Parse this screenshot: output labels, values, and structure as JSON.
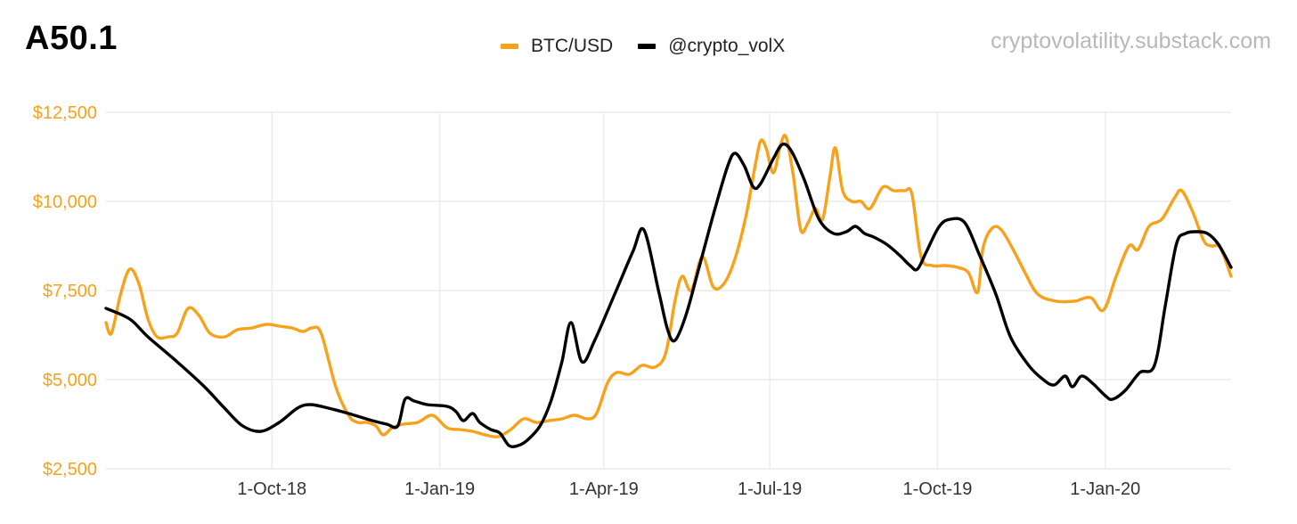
{
  "title": "A50.1",
  "watermark": "cryptovolatility.substack.com",
  "colors": {
    "btc": "#F7A21A",
    "volx": "#000000",
    "grid": "#ececec",
    "ytick": "#F7A21A",
    "xtick": "#333333"
  },
  "chart_data": {
    "type": "line",
    "xlabel": "",
    "ylabel": "",
    "ylim": [
      2500,
      12500
    ],
    "yticks": [
      2500,
      5000,
      7500,
      10000,
      12500
    ],
    "ytick_labels": [
      "$2,500",
      "$5,000",
      "$7,500",
      "$10,000",
      "$12,500"
    ],
    "xlim": [
      "2018-07-02",
      "2020-03-10"
    ],
    "xticks": [
      "2018-10-01",
      "2019-01-01",
      "2019-04-01",
      "2019-07-01",
      "2019-10-01",
      "2020-01-01"
    ],
    "xtick_labels": [
      "1-Oct-18",
      "1-Jan-19",
      "1-Apr-19",
      "1-Jul-19",
      "1-Oct-19",
      "1-Jan-20"
    ],
    "grid": true,
    "legend_position": "top-center",
    "series": [
      {
        "name": "BTC/USD",
        "color": "#F7A21A",
        "points": [
          [
            "2018-07-02",
            6600
          ],
          [
            "2018-07-05",
            6300
          ],
          [
            "2018-07-10",
            7400
          ],
          [
            "2018-07-15",
            8100
          ],
          [
            "2018-07-20",
            7700
          ],
          [
            "2018-07-25",
            6700
          ],
          [
            "2018-07-30",
            6200
          ],
          [
            "2018-08-05",
            6200
          ],
          [
            "2018-08-10",
            6300
          ],
          [
            "2018-08-16",
            7000
          ],
          [
            "2018-08-22",
            6800
          ],
          [
            "2018-08-28",
            6300
          ],
          [
            "2018-09-05",
            6200
          ],
          [
            "2018-09-12",
            6400
          ],
          [
            "2018-09-20",
            6450
          ],
          [
            "2018-09-28",
            6550
          ],
          [
            "2018-10-05",
            6500
          ],
          [
            "2018-10-12",
            6450
          ],
          [
            "2018-10-18",
            6350
          ],
          [
            "2018-10-23",
            6450
          ],
          [
            "2018-10-28",
            6300
          ],
          [
            "2018-11-05",
            4800
          ],
          [
            "2018-11-12",
            4000
          ],
          [
            "2018-11-17",
            3800
          ],
          [
            "2018-11-22",
            3800
          ],
          [
            "2018-11-27",
            3700
          ],
          [
            "2018-12-01",
            3450
          ],
          [
            "2018-12-06",
            3650
          ],
          [
            "2018-12-12",
            3750
          ],
          [
            "2018-12-20",
            3800
          ],
          [
            "2018-12-28",
            4000
          ],
          [
            "2019-01-05",
            3650
          ],
          [
            "2019-01-12",
            3600
          ],
          [
            "2019-01-19",
            3550
          ],
          [
            "2019-01-26",
            3450
          ],
          [
            "2019-02-02",
            3400
          ],
          [
            "2019-02-09",
            3600
          ],
          [
            "2019-02-16",
            3900
          ],
          [
            "2019-02-23",
            3800
          ],
          [
            "2019-03-02",
            3850
          ],
          [
            "2019-03-09",
            3900
          ],
          [
            "2019-03-16",
            4000
          ],
          [
            "2019-03-23",
            3900
          ],
          [
            "2019-03-28",
            4050
          ],
          [
            "2019-04-03",
            4900
          ],
          [
            "2019-04-08",
            5200
          ],
          [
            "2019-04-15",
            5150
          ],
          [
            "2019-04-22",
            5400
          ],
          [
            "2019-04-29",
            5350
          ],
          [
            "2019-05-05",
            5750
          ],
          [
            "2019-05-10",
            7200
          ],
          [
            "2019-05-14",
            7900
          ],
          [
            "2019-05-19",
            7500
          ],
          [
            "2019-05-25",
            8450
          ],
          [
            "2019-05-31",
            7600
          ],
          [
            "2019-06-06",
            7700
          ],
          [
            "2019-06-12",
            8400
          ],
          [
            "2019-06-18",
            9600
          ],
          [
            "2019-06-23",
            11000
          ],
          [
            "2019-06-26",
            11700
          ],
          [
            "2019-06-29",
            11500
          ],
          [
            "2019-07-03",
            10800
          ],
          [
            "2019-07-07",
            11600
          ],
          [
            "2019-07-10",
            11800
          ],
          [
            "2019-07-14",
            10700
          ],
          [
            "2019-07-18",
            9200
          ],
          [
            "2019-07-22",
            9400
          ],
          [
            "2019-07-26",
            9800
          ],
          [
            "2019-07-30",
            9500
          ],
          [
            "2019-08-03",
            10700
          ],
          [
            "2019-08-06",
            11500
          ],
          [
            "2019-08-10",
            10300
          ],
          [
            "2019-08-15",
            10000
          ],
          [
            "2019-08-20",
            10000
          ],
          [
            "2019-08-25",
            9800
          ],
          [
            "2019-09-01",
            10400
          ],
          [
            "2019-09-07",
            10300
          ],
          [
            "2019-09-13",
            10300
          ],
          [
            "2019-09-17",
            10200
          ],
          [
            "2019-09-22",
            8450
          ],
          [
            "2019-09-28",
            8200
          ],
          [
            "2019-10-05",
            8200
          ],
          [
            "2019-10-12",
            8150
          ],
          [
            "2019-10-18",
            8000
          ],
          [
            "2019-10-23",
            7450
          ],
          [
            "2019-10-26",
            8700
          ],
          [
            "2019-10-31",
            9250
          ],
          [
            "2019-11-05",
            9200
          ],
          [
            "2019-11-12",
            8600
          ],
          [
            "2019-11-18",
            8000
          ],
          [
            "2019-11-25",
            7400
          ],
          [
            "2019-12-05",
            7200
          ],
          [
            "2019-12-15",
            7200
          ],
          [
            "2019-12-24",
            7300
          ],
          [
            "2019-12-31",
            6950
          ],
          [
            "2020-01-07",
            7900
          ],
          [
            "2020-01-14",
            8750
          ],
          [
            "2020-01-19",
            8650
          ],
          [
            "2020-01-25",
            9300
          ],
          [
            "2020-02-01",
            9500
          ],
          [
            "2020-02-08",
            10100
          ],
          [
            "2020-02-12",
            10300
          ],
          [
            "2020-02-18",
            9700
          ],
          [
            "2020-02-24",
            8900
          ],
          [
            "2020-02-28",
            8750
          ],
          [
            "2020-03-04",
            8700
          ],
          [
            "2020-03-10",
            7900
          ]
        ]
      },
      {
        "name": "@crypto_volX",
        "color": "#000000",
        "points": [
          [
            "2018-07-02",
            7000
          ],
          [
            "2018-07-15",
            6700
          ],
          [
            "2018-07-25",
            6200
          ],
          [
            "2018-08-10",
            5500
          ],
          [
            "2018-08-25",
            4800
          ],
          [
            "2018-09-05",
            4200
          ],
          [
            "2018-09-15",
            3700
          ],
          [
            "2018-09-25",
            3550
          ],
          [
            "2018-10-05",
            3800
          ],
          [
            "2018-10-15",
            4200
          ],
          [
            "2018-10-22",
            4300
          ],
          [
            "2018-11-01",
            4200
          ],
          [
            "2018-11-12",
            4050
          ],
          [
            "2018-11-25",
            3850
          ],
          [
            "2018-12-03",
            3750
          ],
          [
            "2018-12-09",
            3700
          ],
          [
            "2018-12-13",
            4450
          ],
          [
            "2018-12-18",
            4400
          ],
          [
            "2018-12-25",
            4300
          ],
          [
            "2019-01-05",
            4250
          ],
          [
            "2019-01-10",
            4100
          ],
          [
            "2019-01-14",
            3850
          ],
          [
            "2019-01-19",
            4050
          ],
          [
            "2019-01-23",
            3800
          ],
          [
            "2019-01-29",
            3600
          ],
          [
            "2019-02-03",
            3500
          ],
          [
            "2019-02-08",
            3150
          ],
          [
            "2019-02-13",
            3150
          ],
          [
            "2019-02-18",
            3300
          ],
          [
            "2019-02-25",
            3700
          ],
          [
            "2019-03-03",
            4400
          ],
          [
            "2019-03-09",
            5500
          ],
          [
            "2019-03-14",
            6600
          ],
          [
            "2019-03-20",
            5500
          ],
          [
            "2019-03-27",
            6100
          ],
          [
            "2019-04-07",
            7400
          ],
          [
            "2019-04-17",
            8600
          ],
          [
            "2019-04-23",
            9200
          ],
          [
            "2019-05-01",
            7500
          ],
          [
            "2019-05-06",
            6400
          ],
          [
            "2019-05-10",
            6100
          ],
          [
            "2019-05-16",
            6800
          ],
          [
            "2019-05-23",
            8100
          ],
          [
            "2019-06-01",
            9800
          ],
          [
            "2019-06-08",
            11000
          ],
          [
            "2019-06-12",
            11350
          ],
          [
            "2019-06-17",
            11000
          ],
          [
            "2019-06-22",
            10400
          ],
          [
            "2019-06-26",
            10500
          ],
          [
            "2019-07-03",
            11200
          ],
          [
            "2019-07-08",
            11600
          ],
          [
            "2019-07-13",
            11400
          ],
          [
            "2019-07-20",
            10600
          ],
          [
            "2019-07-28",
            9500
          ],
          [
            "2019-08-05",
            9100
          ],
          [
            "2019-08-12",
            9150
          ],
          [
            "2019-08-17",
            9300
          ],
          [
            "2019-08-22",
            9100
          ],
          [
            "2019-08-27",
            9000
          ],
          [
            "2019-09-03",
            8800
          ],
          [
            "2019-09-10",
            8500
          ],
          [
            "2019-09-16",
            8200
          ],
          [
            "2019-09-20",
            8100
          ],
          [
            "2019-09-25",
            8600
          ],
          [
            "2019-10-02",
            9300
          ],
          [
            "2019-10-08",
            9500
          ],
          [
            "2019-10-16",
            9400
          ],
          [
            "2019-10-24",
            8500
          ],
          [
            "2019-11-02",
            7400
          ],
          [
            "2019-11-10",
            6200
          ],
          [
            "2019-11-20",
            5400
          ],
          [
            "2019-11-28",
            5000
          ],
          [
            "2019-12-04",
            4850
          ],
          [
            "2019-12-10",
            5100
          ],
          [
            "2019-12-14",
            4800
          ],
          [
            "2019-12-19",
            5100
          ],
          [
            "2019-12-25",
            4900
          ],
          [
            "2020-01-01",
            4550
          ],
          [
            "2020-01-05",
            4450
          ],
          [
            "2020-01-12",
            4700
          ],
          [
            "2020-01-20",
            5200
          ],
          [
            "2020-01-28",
            5400
          ],
          [
            "2020-02-03",
            7100
          ],
          [
            "2020-02-09",
            8800
          ],
          [
            "2020-02-14",
            9100
          ],
          [
            "2020-02-20",
            9150
          ],
          [
            "2020-02-26",
            9100
          ],
          [
            "2020-03-03",
            8800
          ],
          [
            "2020-03-10",
            8150
          ]
        ]
      }
    ]
  }
}
